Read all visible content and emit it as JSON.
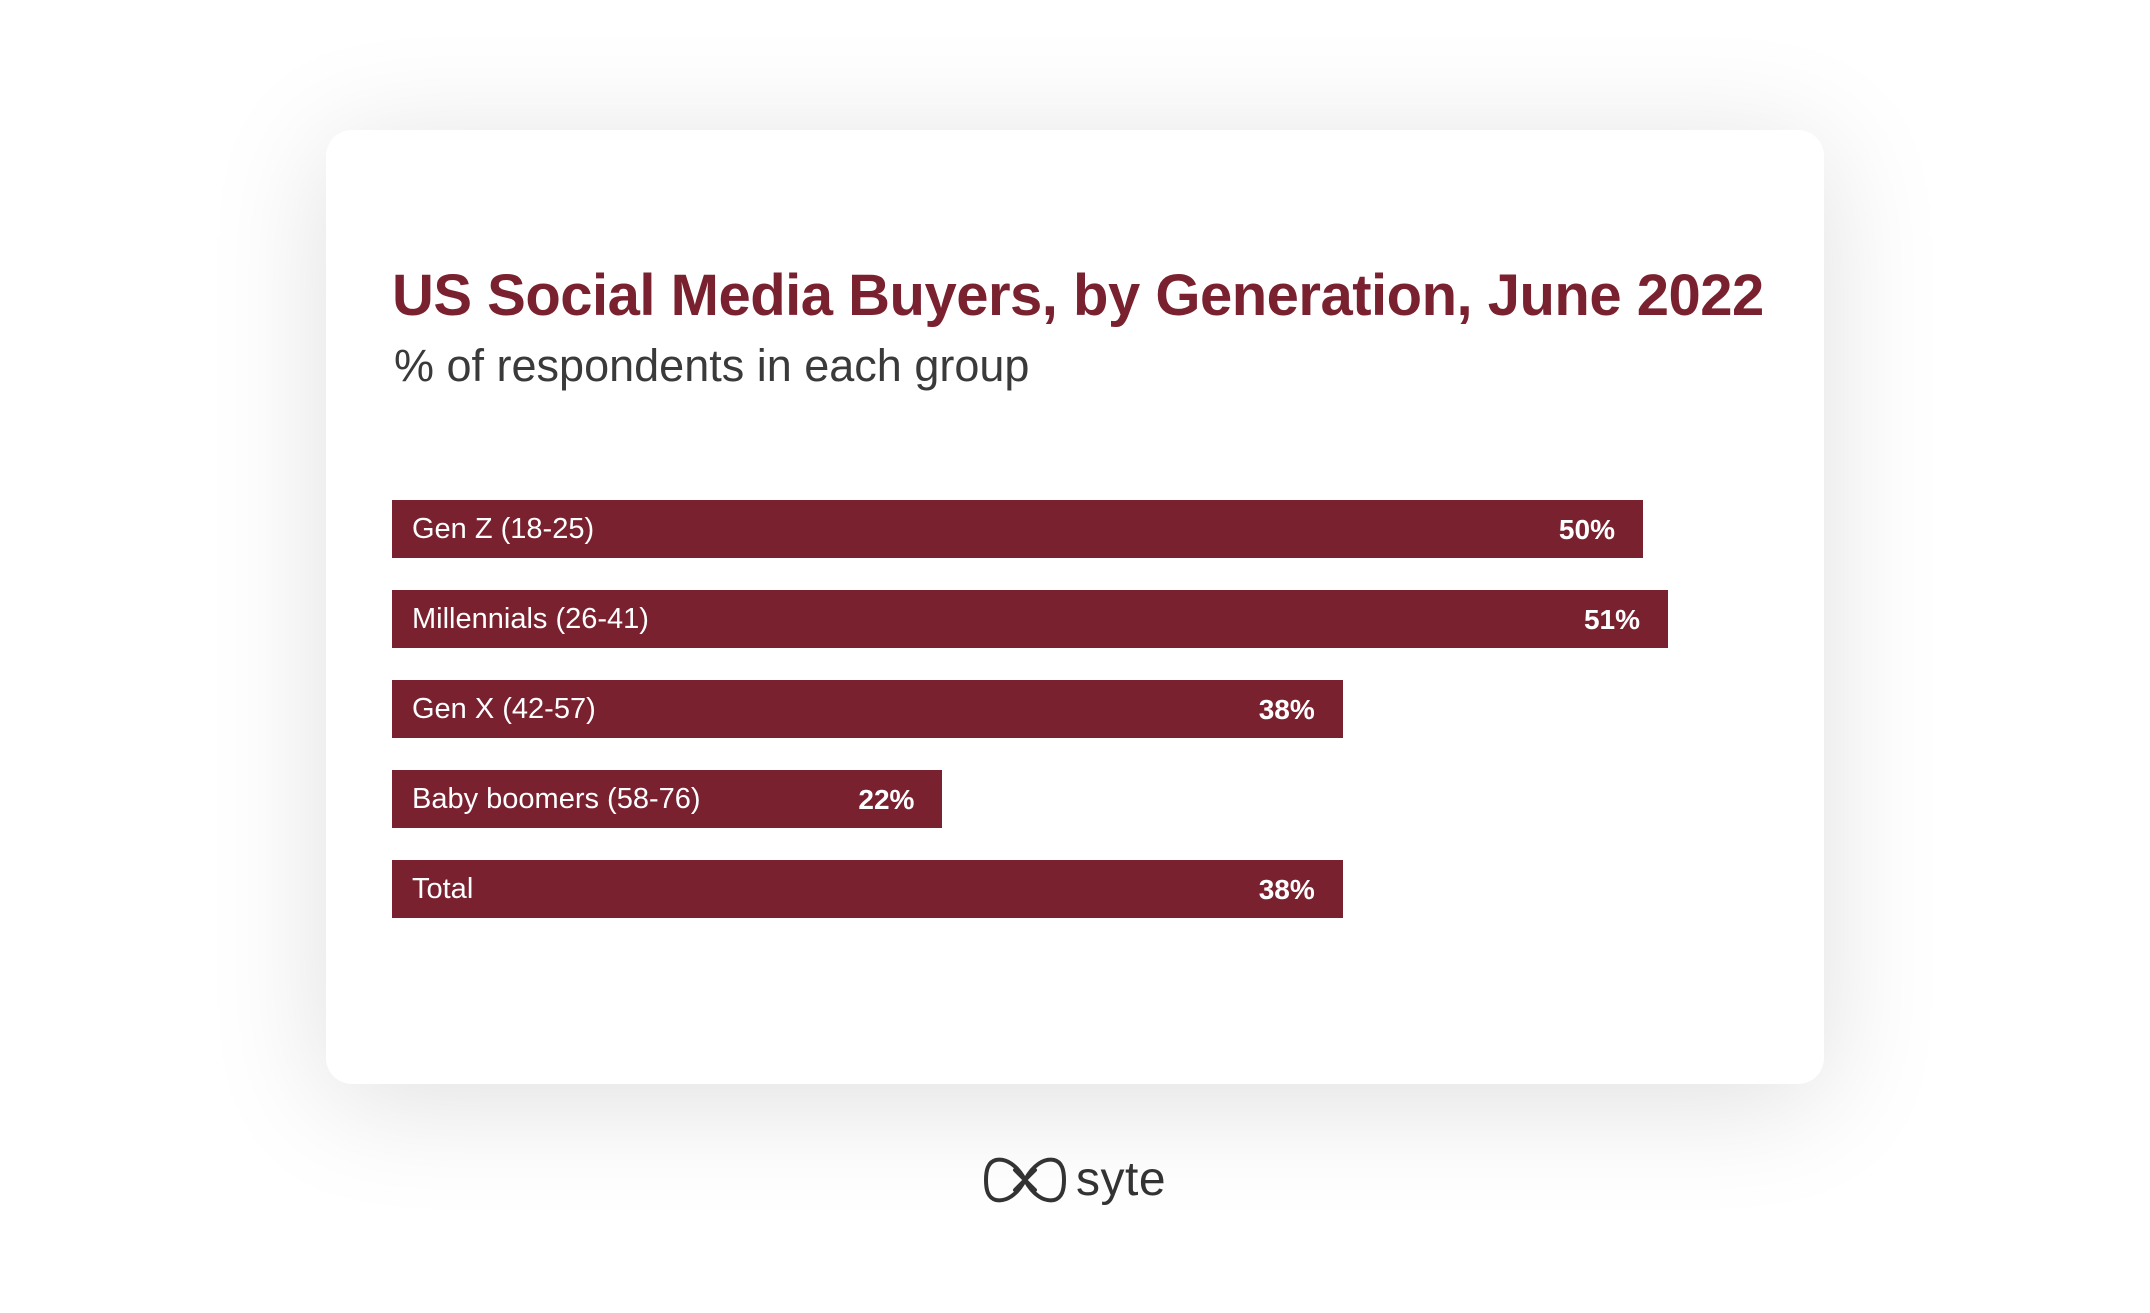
{
  "chart_data": {
    "type": "bar",
    "orientation": "horizontal",
    "title": "US Social Media Buyers, by Generation, June 2022",
    "subtitle": "% of respondents in each group",
    "categories": [
      "Gen Z (18-25)",
      "Millennials (26-41)",
      "Gen X (42-57)",
      "Baby boomers (58-76)",
      "Total"
    ],
    "values": [
      50,
      51,
      38,
      22,
      38
    ],
    "value_labels": [
      "50%",
      "51%",
      "38%",
      "22%",
      "38%"
    ],
    "unit": "%",
    "xlim": [
      0,
      51
    ],
    "grid": false,
    "legend": "none",
    "bar_color": "#7a2130"
  },
  "colors": {
    "accent": "#7a2130",
    "subtitle": "#3a3a3a",
    "background": "#ffffff"
  },
  "footer": {
    "logo_text": "syte",
    "logo_icon": "infinity-bow-icon"
  }
}
